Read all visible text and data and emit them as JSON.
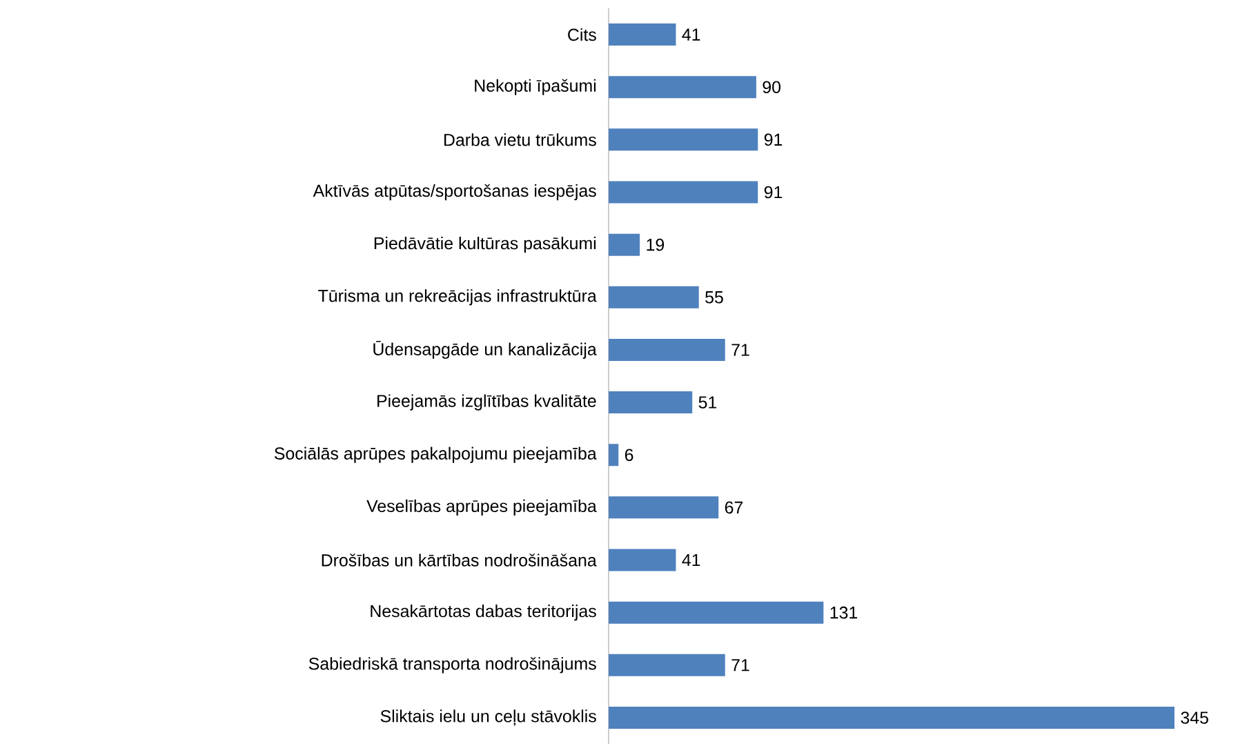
{
  "chart_data": {
    "type": "bar",
    "orientation": "horizontal",
    "categories": [
      "Cits",
      "Nekopti īpašumi",
      "Darba vietu trūkums",
      "Aktīvās atpūtas/sportošanas iespējas",
      "Piedāvātie kultūras pasākumi",
      "Tūrisma un rekreācijas infrastruktūra",
      "Ūdensapgāde un kanalizācija",
      "Pieejamās izglītības kvalitāte",
      "Sociālās aprūpes pakalpojumu pieejamība",
      "Veselības aprūpes pieejamība",
      "Drošības un kārtības nodrošināšana",
      "Nesakārtotas dabas teritorijas",
      "Sabiedriskā transporta nodrošinājums",
      "Sliktais ielu un ceļu stāvoklis"
    ],
    "values": [
      41,
      90,
      91,
      91,
      19,
      55,
      71,
      51,
      6,
      67,
      41,
      131,
      71,
      345
    ],
    "color": "#4f81bd",
    "data_labels": true
  }
}
